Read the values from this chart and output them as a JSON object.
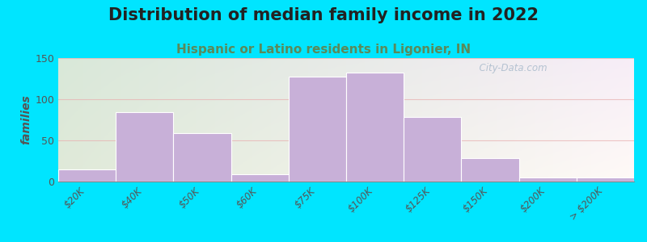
{
  "title": "Distribution of median family income in 2022",
  "subtitle": "Hispanic or Latino residents in Ligonier, IN",
  "categories": [
    "$20K",
    "$40K",
    "$50K",
    "$60K",
    "$75K",
    "$100K",
    "$125K",
    "$150K",
    "$200K",
    "> $200K"
  ],
  "values": [
    15,
    84,
    59,
    9,
    127,
    132,
    78,
    28,
    5,
    5
  ],
  "bar_color": "#c8b0d8",
  "ylabel": "families",
  "ylim": [
    0,
    150
  ],
  "yticks": [
    0,
    50,
    100,
    150
  ],
  "background_outer": "#00e5ff",
  "title_fontsize": 15,
  "subtitle_fontsize": 11,
  "subtitle_color": "#5a8a5a",
  "watermark_text": "  City-Data.com",
  "watermark_color": "#aabbcc",
  "grid_color": "#e8b0b0",
  "plot_bg_topleft": "#d8edd8",
  "plot_bg_topright": "#e8f4f4",
  "plot_bg_bottomright": "#e8f4f4"
}
